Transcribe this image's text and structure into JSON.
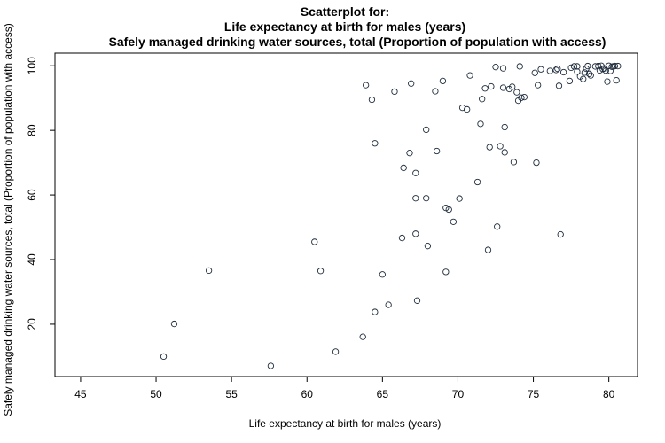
{
  "chart_data": {
    "type": "scatter",
    "title_lines": [
      "Scatterplot for:",
      "Life expectancy at birth for males (years)",
      "Safely managed drinking water sources, total (Proportion of population with access)"
    ],
    "xlabel": "Life expectancy at birth for males (years)",
    "ylabel": "Safely managed drinking water sources, total (Proportion of population with access)",
    "xlim": [
      43.3,
      81.9
    ],
    "ylim": [
      3.8,
      103.9
    ],
    "xticks": [
      45,
      50,
      55,
      60,
      65,
      70,
      75,
      80
    ],
    "yticks": [
      20,
      40,
      60,
      80,
      100
    ],
    "grid": false,
    "colors": {
      "marker": "#1f2d3d",
      "axis": "#000000",
      "background": "#ffffff"
    },
    "points": [
      [
        50.5,
        10.0
      ],
      [
        51.2,
        20.1
      ],
      [
        53.5,
        36.6
      ],
      [
        57.6,
        7.1
      ],
      [
        60.5,
        45.5
      ],
      [
        60.9,
        36.5
      ],
      [
        61.9,
        11.5
      ],
      [
        63.7,
        16.1
      ],
      [
        63.9,
        94.0
      ],
      [
        64.3,
        89.5
      ],
      [
        64.5,
        23.8
      ],
      [
        64.5,
        76.0
      ],
      [
        65.0,
        35.4
      ],
      [
        65.4,
        26.0
      ],
      [
        65.8,
        92.0
      ],
      [
        66.3,
        46.7
      ],
      [
        66.4,
        68.4
      ],
      [
        66.8,
        73.0
      ],
      [
        66.9,
        94.5
      ],
      [
        67.2,
        66.8
      ],
      [
        67.2,
        48.0
      ],
      [
        67.2,
        59.0
      ],
      [
        67.3,
        27.3
      ],
      [
        67.9,
        59.0
      ],
      [
        67.9,
        80.2
      ],
      [
        68.0,
        44.2
      ],
      [
        68.5,
        92.1
      ],
      [
        68.6,
        73.6
      ],
      [
        69.0,
        95.3
      ],
      [
        69.2,
        36.2
      ],
      [
        69.2,
        56.0
      ],
      [
        69.4,
        55.5
      ],
      [
        69.7,
        51.7
      ],
      [
        70.1,
        58.9
      ],
      [
        70.3,
        87.0
      ],
      [
        70.6,
        86.5
      ],
      [
        70.8,
        97.0
      ],
      [
        71.3,
        64.0
      ],
      [
        71.5,
        82.0
      ],
      [
        71.6,
        89.7
      ],
      [
        71.8,
        93.0
      ],
      [
        72.0,
        43.0
      ],
      [
        72.1,
        74.8
      ],
      [
        72.2,
        93.6
      ],
      [
        72.5,
        99.6
      ],
      [
        72.6,
        50.2
      ],
      [
        72.8,
        75.1
      ],
      [
        73.0,
        93.2
      ],
      [
        73.0,
        99.2
      ],
      [
        73.1,
        81.0
      ],
      [
        73.1,
        73.2
      ],
      [
        73.4,
        92.8
      ],
      [
        73.6,
        93.5
      ],
      [
        73.7,
        70.2
      ],
      [
        73.9,
        91.8
      ],
      [
        74.0,
        89.2
      ],
      [
        74.1,
        99.8
      ],
      [
        74.2,
        90.1
      ],
      [
        74.4,
        90.3
      ],
      [
        75.1,
        97.8
      ],
      [
        75.2,
        70.0
      ],
      [
        75.3,
        94.0
      ],
      [
        75.5,
        98.9
      ],
      [
        76.1,
        98.4
      ],
      [
        76.5,
        98.7
      ],
      [
        76.6,
        99.1
      ],
      [
        76.7,
        93.8
      ],
      [
        76.8,
        47.8
      ],
      [
        77.0,
        98.0
      ],
      [
        77.4,
        95.3
      ],
      [
        77.5,
        99.4
      ],
      [
        77.7,
        99.8
      ],
      [
        77.9,
        98.2
      ],
      [
        77.9,
        99.8
      ],
      [
        78.1,
        96.7
      ],
      [
        78.3,
        95.9
      ],
      [
        78.4,
        97.9
      ],
      [
        78.5,
        99.1
      ],
      [
        78.6,
        99.9
      ],
      [
        78.7,
        97.5
      ],
      [
        78.8,
        97.0
      ],
      [
        79.1,
        99.8
      ],
      [
        79.3,
        99.9
      ],
      [
        79.4,
        98.6
      ],
      [
        79.5,
        100.0
      ],
      [
        79.6,
        99.0
      ],
      [
        79.7,
        99.2
      ],
      [
        79.8,
        98.5
      ],
      [
        79.9,
        95.1
      ],
      [
        80.0,
        100.0
      ],
      [
        80.1,
        98.4
      ],
      [
        80.2,
        99.7
      ],
      [
        80.3,
        99.8
      ],
      [
        80.4,
        99.9
      ],
      [
        80.5,
        95.5
      ],
      [
        80.6,
        99.9
      ]
    ]
  }
}
